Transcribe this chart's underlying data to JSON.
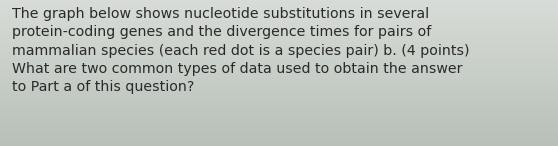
{
  "text": "The graph below shows nucleotide substitutions in several\nprotein-coding genes and the divergence times for pairs of\nmammalian species (each red dot is a species pair) b. (4 points)\nWhat are two common types of data used to obtain the answer\nto Part a of this question?",
  "background_color_top": "#d8ddd8",
  "background_color_bottom": "#b8c0b8",
  "text_color": "#2a2a2a",
  "font_size": 10.2,
  "fig_width": 5.58,
  "fig_height": 1.46
}
